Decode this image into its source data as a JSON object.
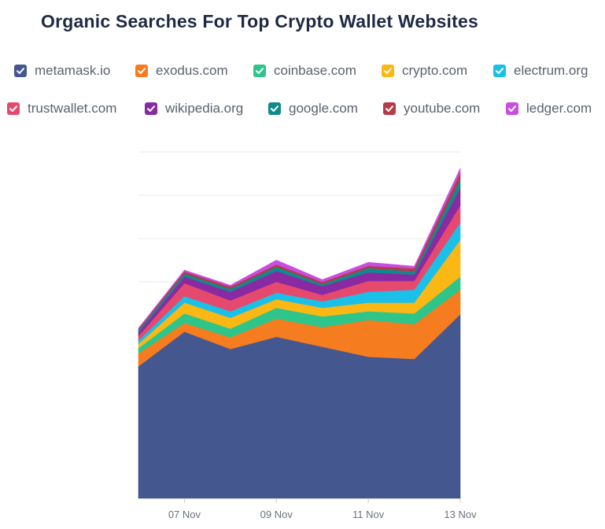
{
  "colors": {
    "metamask.io": "#44578f",
    "exodus.com": "#f57c1f",
    "coinbase.com": "#2ec58a",
    "crypto.com": "#fbb714",
    "electrum.org": "#1bc0e8",
    "trustwallet.com": "#e6496e",
    "wikipedia.org": "#8a2aa3",
    "google.com": "#0f8a8c",
    "youtube.com": "#b73a48",
    "ledger.com": "#c94de0"
  },
  "chart_data": {
    "type": "area",
    "stacked": true,
    "title": "Organic Searches For Top Crypto Wallet Websites",
    "x": [
      "06 Nov",
      "07 Nov",
      "08 Nov",
      "09 Nov",
      "10 Nov",
      "11 Nov",
      "12 Nov",
      "13 Nov"
    ],
    "x_tick_labels": [
      "07 Nov",
      "09 Nov",
      "11 Nov",
      "13 Nov"
    ],
    "ylim": [
      0,
      800
    ],
    "grid": true,
    "legend_position": "top",
    "series": [
      {
        "name": "metamask.io",
        "values": [
          305,
          385,
          345,
          373,
          350,
          327,
          322,
          425
        ]
      },
      {
        "name": "exodus.com",
        "values": [
          30,
          20,
          27,
          42,
          45,
          85,
          80,
          57
        ]
      },
      {
        "name": "coinbase.com",
        "values": [
          12,
          22,
          20,
          25,
          25,
          20,
          25,
          30
        ]
      },
      {
        "name": "crypto.com",
        "values": [
          10,
          25,
          25,
          20,
          20,
          20,
          25,
          85
        ]
      },
      {
        "name": "electrum.org",
        "values": [
          8,
          15,
          15,
          15,
          15,
          25,
          30,
          40
        ]
      },
      {
        "name": "trustwallet.com",
        "values": [
          10,
          30,
          25,
          25,
          15,
          25,
          20,
          40
        ]
      },
      {
        "name": "wikipedia.org",
        "values": [
          8,
          15,
          20,
          25,
          20,
          20,
          15,
          40
        ]
      },
      {
        "name": "google.com",
        "values": [
          5,
          7,
          7,
          10,
          5,
          10,
          7,
          20
        ]
      },
      {
        "name": "youtube.com",
        "values": [
          3,
          5,
          5,
          5,
          5,
          5,
          7,
          15
        ]
      },
      {
        "name": "ledger.com",
        "values": [
          2,
          3,
          3,
          10,
          5,
          8,
          5,
          10
        ]
      }
    ]
  }
}
